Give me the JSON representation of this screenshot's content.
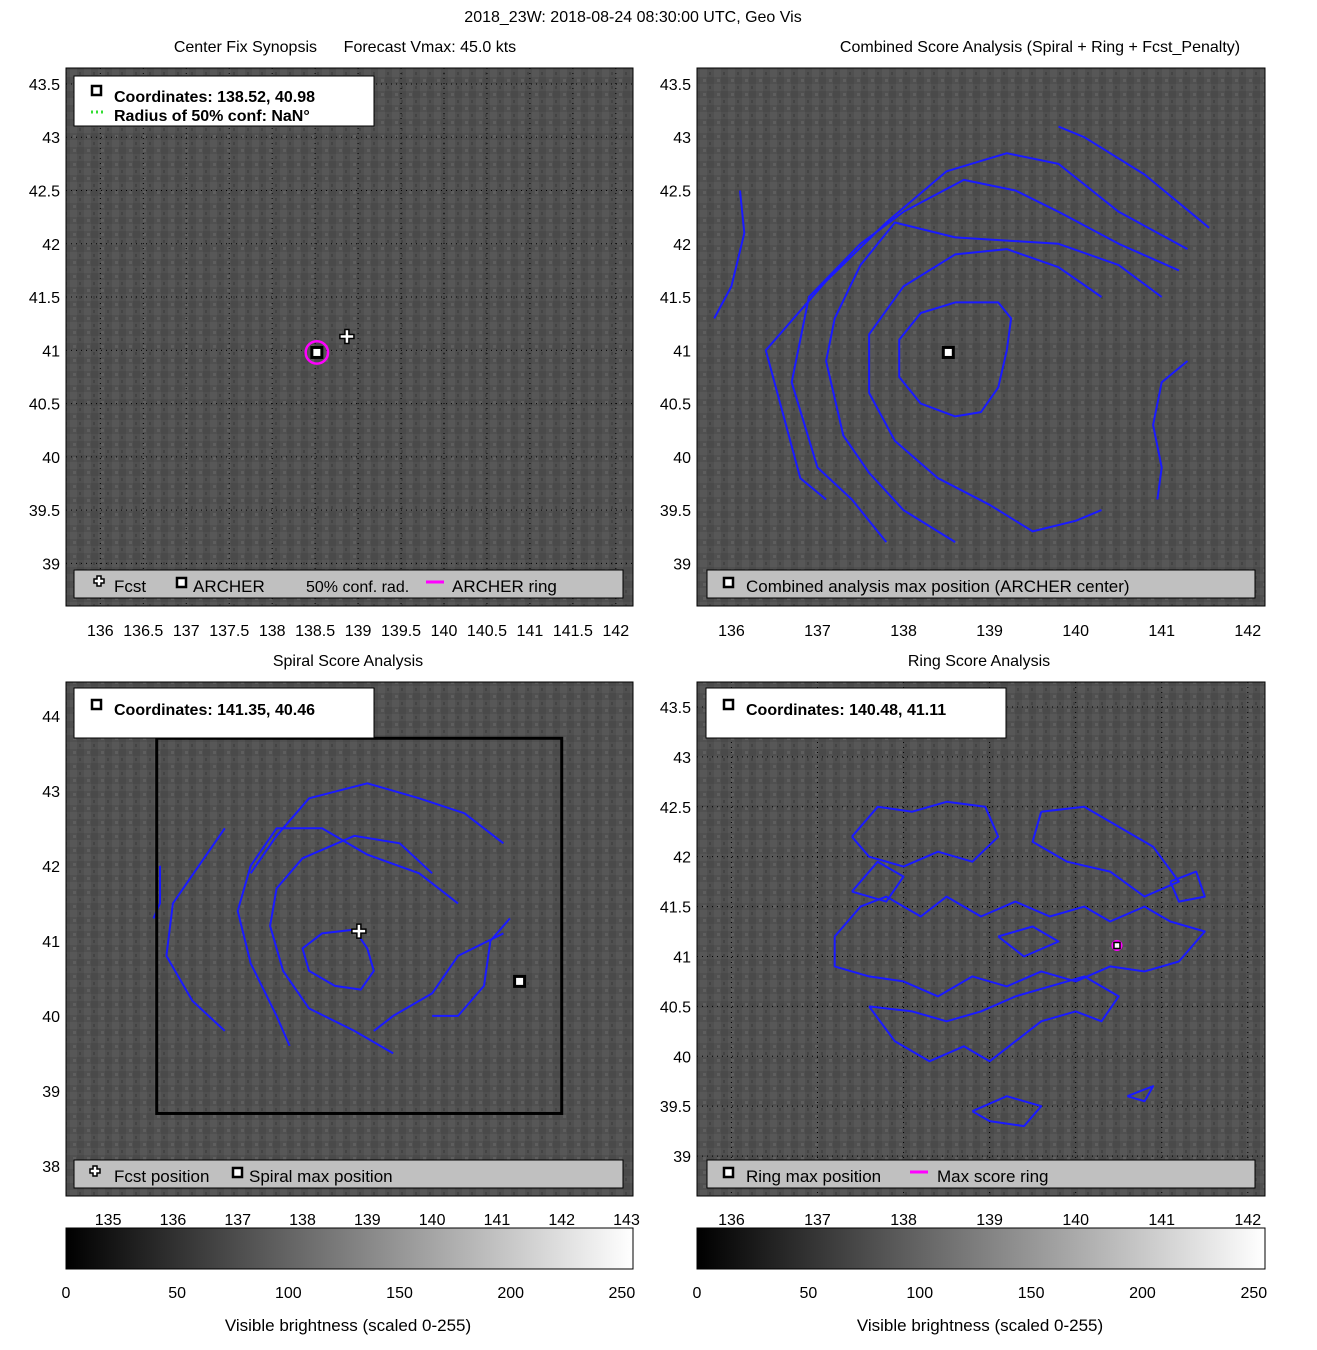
{
  "figure": {
    "title": "2018_23W: 2018-08-24 08:30:00 UTC, Geo Vis",
    "colorbar_label": "Visible brightness (scaled 0-255)",
    "colorbar_ticks": [
      0,
      50,
      100,
      150,
      200,
      250
    ]
  },
  "chart_data": [
    {
      "id": "p1",
      "type": "image",
      "title": "Center Fix Synopsis      Forecast Vmax: 45.0 kts",
      "xlim": [
        135.6,
        142.2
      ],
      "ylim": [
        38.6,
        43.65
      ],
      "xticks": [
        136,
        136.5,
        137,
        137.5,
        138,
        138.5,
        139,
        139.5,
        140,
        140.5,
        141,
        141.5,
        142
      ],
      "yticks": [
        39,
        39.5,
        40,
        40.5,
        41,
        41.5,
        42,
        42.5,
        43,
        43.5
      ],
      "grid": true,
      "info_lines": [
        "Coordinates: 138.52, 40.98",
        "Radius of 50% conf: NaN°"
      ],
      "legend": [
        {
          "symbol": "cross",
          "label": "Fcst"
        },
        {
          "symbol": "square",
          "label": "ARCHER"
        },
        {
          "symbol": "dots",
          "label": "50% conf. rad."
        },
        {
          "symbol": "magenta-line",
          "label": "ARCHER ring"
        }
      ],
      "markers": [
        {
          "kind": "square",
          "x": 138.52,
          "y": 40.98
        },
        {
          "kind": "cross",
          "x": 138.87,
          "y": 41.13
        },
        {
          "kind": "ring",
          "x": 138.52,
          "y": 40.98,
          "r": 0.13
        }
      ],
      "contours": []
    },
    {
      "id": "p2",
      "type": "contour",
      "title": "Combined Score Analysis (Spiral + Ring + Fcst_Penalty)",
      "xlim": [
        135.6,
        142.2
      ],
      "ylim": [
        38.6,
        43.65
      ],
      "xticks": [
        136,
        137,
        138,
        139,
        140,
        141,
        142
      ],
      "yticks": [
        39,
        39.5,
        40,
        40.5,
        41,
        41.5,
        42,
        42.5,
        43,
        43.5
      ],
      "grid": false,
      "info_lines": [],
      "legend": [
        {
          "symbol": "square",
          "label": "Combined analysis max position (ARCHER center)"
        }
      ],
      "markers": [
        {
          "kind": "square",
          "x": 138.52,
          "y": 40.98
        }
      ],
      "contours": [
        [
          [
            138.6,
            41.45
          ],
          [
            138.2,
            41.35
          ],
          [
            137.95,
            41.1
          ],
          [
            137.95,
            40.75
          ],
          [
            138.2,
            40.5
          ],
          [
            138.6,
            40.38
          ],
          [
            138.9,
            40.42
          ],
          [
            139.1,
            40.65
          ],
          [
            139.2,
            41.0
          ],
          [
            139.25,
            41.3
          ],
          [
            139.1,
            41.45
          ],
          [
            138.6,
            41.45
          ]
        ],
        [
          [
            140.3,
            41.5
          ],
          [
            139.8,
            41.78
          ],
          [
            139.2,
            41.95
          ],
          [
            138.6,
            41.9
          ],
          [
            138.0,
            41.6
          ],
          [
            137.6,
            41.15
          ],
          [
            137.6,
            40.6
          ],
          [
            137.9,
            40.15
          ],
          [
            138.4,
            39.8
          ],
          [
            139.0,
            39.55
          ],
          [
            139.5,
            39.3
          ],
          [
            140.0,
            39.4
          ],
          [
            140.3,
            39.5
          ]
        ],
        [
          [
            141.0,
            41.5
          ],
          [
            140.5,
            41.8
          ],
          [
            139.8,
            42.0
          ],
          [
            138.6,
            42.06
          ],
          [
            137.9,
            42.2
          ],
          [
            137.5,
            41.8
          ],
          [
            137.2,
            41.3
          ],
          [
            137.1,
            40.9
          ],
          [
            137.3,
            40.2
          ],
          [
            137.6,
            39.85
          ],
          [
            138.0,
            39.5
          ],
          [
            138.6,
            39.2
          ]
        ],
        [
          [
            141.2,
            41.75
          ],
          [
            140.5,
            42.0
          ],
          [
            139.8,
            42.3
          ],
          [
            139.3,
            42.5
          ],
          [
            138.7,
            42.6
          ],
          [
            138.0,
            42.3
          ],
          [
            137.5,
            42.0
          ],
          [
            136.9,
            41.5
          ],
          [
            136.7,
            40.7
          ],
          [
            137.0,
            39.9
          ],
          [
            137.4,
            39.6
          ],
          [
            137.8,
            39.2
          ]
        ],
        [
          [
            141.3,
            41.95
          ],
          [
            140.5,
            42.3
          ],
          [
            139.8,
            42.75
          ],
          [
            139.2,
            42.85
          ],
          [
            138.5,
            42.68
          ],
          [
            137.8,
            42.2
          ],
          [
            137.1,
            41.65
          ],
          [
            136.4,
            41.0
          ],
          [
            136.6,
            40.4
          ],
          [
            136.8,
            39.8
          ],
          [
            137.1,
            39.6
          ]
        ],
        [
          [
            141.55,
            42.15
          ],
          [
            140.8,
            42.65
          ],
          [
            140.1,
            43.0
          ],
          [
            139.8,
            43.1
          ]
        ],
        [
          [
            136.1,
            42.5
          ],
          [
            136.15,
            42.1
          ],
          [
            136.0,
            41.6
          ],
          [
            135.8,
            41.3
          ]
        ],
        [
          [
            141.3,
            40.9
          ],
          [
            141.0,
            40.7
          ],
          [
            140.9,
            40.3
          ],
          [
            141.0,
            39.9
          ],
          [
            140.95,
            39.6
          ]
        ]
      ]
    },
    {
      "id": "p3",
      "type": "contour",
      "title": "Spiral Score Analysis",
      "xlim": [
        134.35,
        143.1
      ],
      "ylim": [
        37.6,
        44.45
      ],
      "xticks": [
        135,
        136,
        137,
        138,
        139,
        140,
        141,
        142,
        143
      ],
      "yticks": [
        38,
        39,
        40,
        41,
        42,
        43,
        44
      ],
      "grid": false,
      "info_lines": [
        "Coordinates: 141.35, 40.46"
      ],
      "legend": [
        {
          "symbol": "cross",
          "label": "Fcst position"
        },
        {
          "symbol": "square",
          "label": "Spiral max position"
        }
      ],
      "markers": [
        {
          "kind": "cross",
          "x": 138.87,
          "y": 41.13
        },
        {
          "kind": "square",
          "x": 141.35,
          "y": 40.46
        },
        {
          "kind": "box",
          "x0": 135.75,
          "x1": 142.0,
          "y0": 38.7,
          "y1": 43.7
        }
      ],
      "contours": [
        [
          [
            138.8,
            41.15
          ],
          [
            138.3,
            41.1
          ],
          [
            138.0,
            40.9
          ],
          [
            138.1,
            40.6
          ],
          [
            138.5,
            40.4
          ],
          [
            138.9,
            40.35
          ],
          [
            139.1,
            40.6
          ],
          [
            139.0,
            40.9
          ],
          [
            138.8,
            41.15
          ]
        ],
        [
          [
            140.0,
            41.9
          ],
          [
            139.5,
            42.3
          ],
          [
            138.8,
            42.4
          ],
          [
            138.0,
            42.1
          ],
          [
            137.6,
            41.7
          ],
          [
            137.5,
            41.2
          ],
          [
            137.7,
            40.6
          ],
          [
            138.1,
            40.1
          ],
          [
            138.8,
            39.8
          ],
          [
            139.4,
            39.5
          ]
        ],
        [
          [
            140.4,
            41.5
          ],
          [
            139.8,
            41.9
          ],
          [
            139.0,
            42.15
          ],
          [
            138.3,
            42.5
          ],
          [
            137.6,
            42.5
          ],
          [
            137.2,
            42.0
          ],
          [
            137.0,
            41.4
          ],
          [
            137.2,
            40.7
          ],
          [
            137.6,
            40.0
          ],
          [
            137.8,
            39.6
          ]
        ],
        [
          [
            141.1,
            42.3
          ],
          [
            140.5,
            42.7
          ],
          [
            139.8,
            42.9
          ],
          [
            139.0,
            43.1
          ],
          [
            138.1,
            42.9
          ],
          [
            137.6,
            42.4
          ],
          [
            137.2,
            41.9
          ]
        ],
        [
          [
            141.1,
            41.1
          ],
          [
            140.4,
            40.8
          ],
          [
            140.0,
            40.3
          ],
          [
            139.4,
            40.0
          ],
          [
            139.1,
            39.8
          ]
        ],
        [
          [
            136.8,
            42.5
          ],
          [
            136.4,
            42.0
          ],
          [
            136.0,
            41.5
          ],
          [
            135.9,
            40.8
          ],
          [
            136.3,
            40.2
          ],
          [
            136.8,
            39.8
          ]
        ],
        [
          [
            135.8,
            42.0
          ],
          [
            135.8,
            41.5
          ],
          [
            135.7,
            41.3
          ]
        ],
        [
          [
            141.2,
            41.3
          ],
          [
            140.9,
            41.0
          ],
          [
            140.8,
            40.4
          ],
          [
            140.4,
            40.0
          ],
          [
            140.0,
            40.0
          ]
        ]
      ]
    },
    {
      "id": "p4",
      "type": "contour",
      "title": "Ring Score Analysis",
      "xlim": [
        135.6,
        142.2
      ],
      "ylim": [
        38.6,
        43.75
      ],
      "xticks": [
        136,
        137,
        138,
        139,
        140,
        141,
        142
      ],
      "yticks": [
        39,
        39.5,
        40,
        40.5,
        41,
        41.5,
        42,
        42.5,
        43,
        43.5
      ],
      "grid": true,
      "info_lines": [
        "Coordinates: 140.48, 41.11"
      ],
      "legend": [
        {
          "symbol": "square",
          "label": "Ring max position"
        },
        {
          "symbol": "magenta-line",
          "label": "Max score ring"
        }
      ],
      "markers": [
        {
          "kind": "ring",
          "x": 140.48,
          "y": 41.11,
          "r": 0.05
        }
      ],
      "contours": [
        [
          [
            137.2,
            41.2
          ],
          [
            137.5,
            41.5
          ],
          [
            137.8,
            41.6
          ],
          [
            138.2,
            41.4
          ],
          [
            138.5,
            41.6
          ],
          [
            138.9,
            41.4
          ],
          [
            139.3,
            41.55
          ],
          [
            139.7,
            41.4
          ],
          [
            140.1,
            41.5
          ],
          [
            140.4,
            41.35
          ],
          [
            140.8,
            41.5
          ],
          [
            141.1,
            41.35
          ],
          [
            141.5,
            41.25
          ],
          [
            141.2,
            40.95
          ],
          [
            140.8,
            40.85
          ],
          [
            140.4,
            40.9
          ],
          [
            140.0,
            40.75
          ],
          [
            139.6,
            40.85
          ],
          [
            139.2,
            40.7
          ],
          [
            138.8,
            40.8
          ],
          [
            138.4,
            40.6
          ],
          [
            138.0,
            40.75
          ],
          [
            137.6,
            40.8
          ],
          [
            137.2,
            40.9
          ],
          [
            137.2,
            41.2
          ]
        ],
        [
          [
            137.6,
            40.5
          ],
          [
            137.9,
            40.15
          ],
          [
            138.3,
            39.95
          ],
          [
            138.7,
            40.1
          ],
          [
            139.0,
            39.95
          ],
          [
            139.3,
            40.15
          ],
          [
            139.6,
            40.35
          ],
          [
            140.0,
            40.45
          ],
          [
            140.3,
            40.35
          ],
          [
            140.5,
            40.6
          ],
          [
            140.1,
            40.8
          ],
          [
            139.7,
            40.7
          ],
          [
            139.3,
            40.6
          ],
          [
            138.9,
            40.45
          ],
          [
            138.5,
            40.35
          ],
          [
            138.1,
            40.45
          ],
          [
            137.6,
            40.5
          ]
        ],
        [
          [
            137.4,
            42.2
          ],
          [
            137.7,
            42.5
          ],
          [
            138.1,
            42.45
          ],
          [
            138.5,
            42.55
          ],
          [
            138.95,
            42.5
          ],
          [
            139.1,
            42.2
          ],
          [
            138.8,
            41.95
          ],
          [
            138.4,
            42.05
          ],
          [
            138.0,
            41.9
          ],
          [
            137.6,
            42.0
          ],
          [
            137.4,
            42.2
          ]
        ],
        [
          [
            139.6,
            42.45
          ],
          [
            140.1,
            42.5
          ],
          [
            140.5,
            42.3
          ],
          [
            140.9,
            42.1
          ],
          [
            141.2,
            41.75
          ],
          [
            140.8,
            41.6
          ],
          [
            140.4,
            41.85
          ],
          [
            139.9,
            41.95
          ],
          [
            139.5,
            42.15
          ],
          [
            139.6,
            42.45
          ]
        ],
        [
          [
            137.4,
            41.65
          ],
          [
            137.7,
            41.95
          ],
          [
            138.0,
            41.8
          ],
          [
            137.8,
            41.55
          ],
          [
            137.4,
            41.65
          ]
        ],
        [
          [
            139.1,
            41.2
          ],
          [
            139.5,
            41.3
          ],
          [
            139.8,
            41.15
          ],
          [
            139.4,
            41.0
          ],
          [
            139.1,
            41.2
          ]
        ],
        [
          [
            138.8,
            39.45
          ],
          [
            139.2,
            39.6
          ],
          [
            139.6,
            39.5
          ],
          [
            139.4,
            39.3
          ],
          [
            139.0,
            39.35
          ],
          [
            138.8,
            39.45
          ]
        ],
        [
          [
            140.6,
            39.6
          ],
          [
            140.9,
            39.7
          ],
          [
            140.8,
            39.55
          ],
          [
            140.6,
            39.6
          ]
        ],
        [
          [
            141.1,
            41.75
          ],
          [
            141.4,
            41.85
          ],
          [
            141.5,
            41.6
          ],
          [
            141.2,
            41.55
          ],
          [
            141.1,
            41.75
          ]
        ]
      ]
    }
  ]
}
